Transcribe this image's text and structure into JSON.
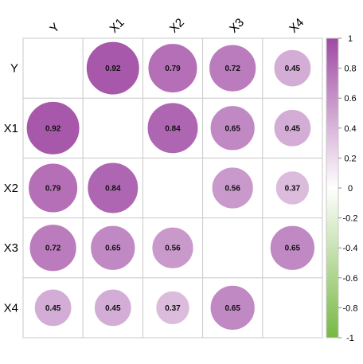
{
  "chart_data": {
    "type": "heatmap",
    "variables": [
      "Y",
      "X1",
      "X2",
      "X3",
      "X4"
    ],
    "matrix": [
      [
        null,
        0.92,
        0.79,
        0.72,
        0.45
      ],
      [
        0.92,
        null,
        0.84,
        0.65,
        0.45
      ],
      [
        0.79,
        0.84,
        null,
        0.56,
        0.37
      ],
      [
        0.72,
        0.65,
        0.56,
        null,
        0.65
      ],
      [
        0.45,
        0.45,
        0.37,
        0.65,
        null
      ]
    ],
    "display_labels": [
      [
        "",
        "0.92",
        "0.79",
        "0.72",
        "0.45"
      ],
      [
        "0.92",
        "",
        "0.84",
        "0.65",
        "0.45"
      ],
      [
        "0.79",
        "0.84",
        "",
        "0.56",
        "0.37"
      ],
      [
        "0.72",
        "0.65",
        "0.56",
        "",
        "0.65"
      ],
      [
        "0.45",
        "0.45",
        "0.37",
        "0.65",
        ""
      ]
    ],
    "mark": "circle",
    "diagonal": "blank",
    "color_range": [
      -1,
      1
    ],
    "colors": {
      "low": "#77b843",
      "mid": "#ffffff",
      "high": "#a049a3"
    },
    "colorbar_ticks": [
      "1",
      "0.8",
      "0.6",
      "0.4",
      "0.2",
      "0",
      "-0.2",
      "-0.4",
      "-0.6",
      "-0.8",
      "-1"
    ],
    "colorbar_tick_values": [
      1,
      0.8,
      0.6,
      0.4,
      0.2,
      0,
      -0.2,
      -0.4,
      -0.6,
      -0.8,
      -1
    ],
    "grid": true,
    "legend": "right"
  }
}
